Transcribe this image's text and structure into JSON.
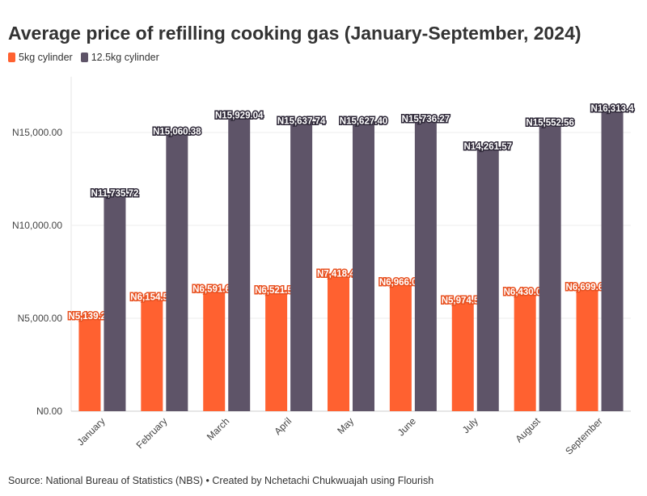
{
  "chart_data": {
    "type": "bar",
    "title": "Average price of refilling cooking gas (January-September, 2024)",
    "categories": [
      "January",
      "February",
      "March",
      "April",
      "May",
      "June",
      "July",
      "August",
      "September"
    ],
    "series": [
      {
        "name": "5kg cylinder",
        "color": "#ff6130",
        "values": [
          5139.25,
          6154.5,
          6591.62,
          6521.58,
          7418.45,
          6966.03,
          5974.55,
          6430.02,
          6699.63
        ],
        "labels": [
          "N5,139.25",
          "N6,154.50",
          "N6,591.62",
          "N6,521.58",
          "N7,418.45",
          "N6,966.03",
          "N5,974.55",
          "N6,430.02",
          "N6,699.63"
        ]
      },
      {
        "name": "12.5kg cylinder",
        "color": "#5e5468",
        "values": [
          11735.72,
          15060.38,
          15929.04,
          15637.74,
          15627.4,
          15736.27,
          14261.57,
          15552.56,
          16313.4
        ],
        "labels": [
          "N11,735.72",
          "N15,060.38",
          "N15,929.04",
          "N15,637.74",
          "N15,627.40",
          "N15,736.27",
          "N14,261.57",
          "N15,552.56",
          "N16,313.4"
        ]
      }
    ],
    "yticks": [
      0,
      5000,
      10000,
      15000
    ],
    "ytick_labels": [
      "N0.00",
      "N5,000.00",
      "N10,000.00",
      "N15,000.00"
    ],
    "ylim": [
      0,
      17000
    ],
    "grid": true,
    "legend": "top-left"
  },
  "source": "Source: National Bureau of Statistics (NBS) • Created by Nchetachi Chukwuajah using Flourish"
}
